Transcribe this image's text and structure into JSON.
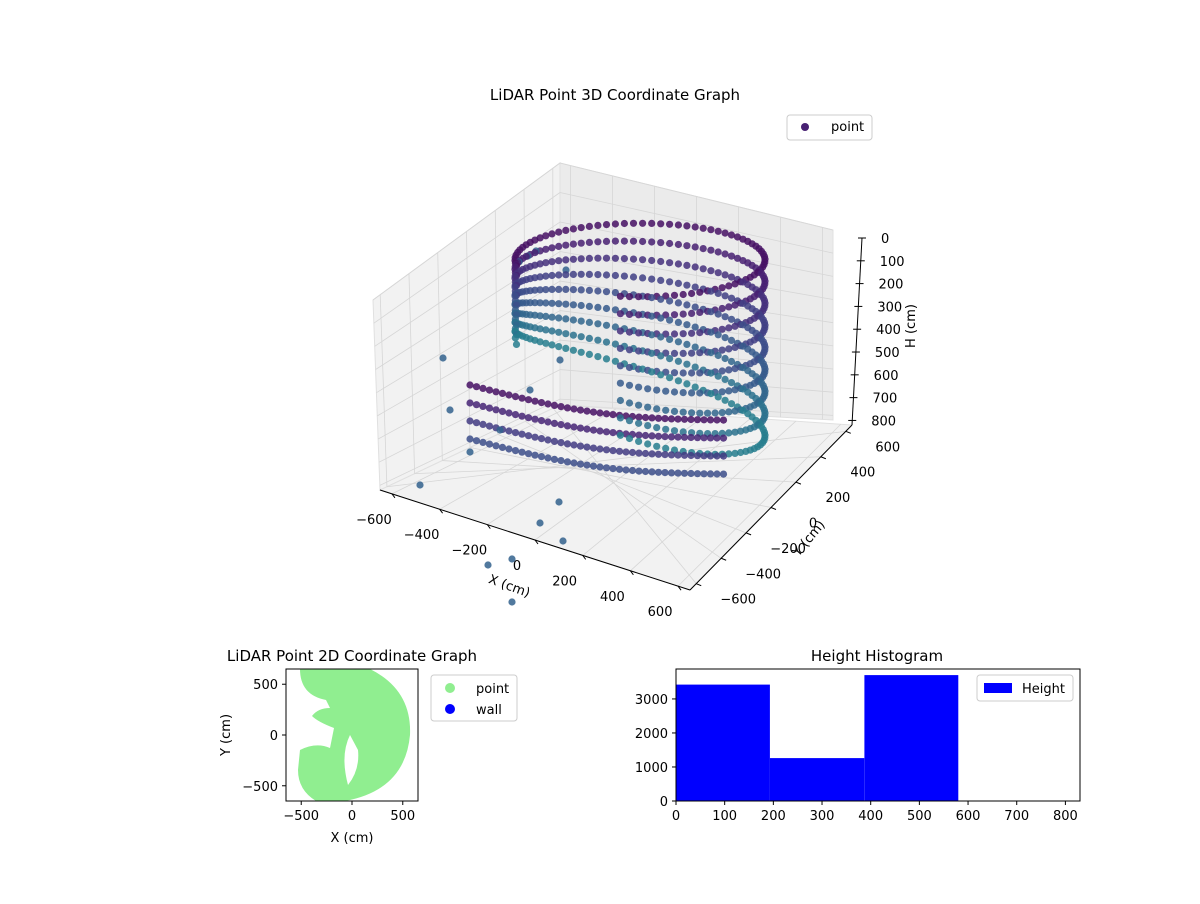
{
  "chart_data": [
    {
      "type": "scatter",
      "title": "LiDAR Point 3D Coordinate Graph",
      "xlabel": "X (cm)",
      "ylabel": "Y (cm)",
      "zlabel": "H (cm)",
      "xticks": [
        "−600",
        "−400",
        "−200",
        "0",
        "200",
        "400",
        "600"
      ],
      "yticks": [
        "−600",
        "−400",
        "−200",
        "0",
        "200",
        "400",
        "600"
      ],
      "zticks": [
        "0",
        "100",
        "200",
        "300",
        "400",
        "500",
        "600",
        "700",
        "800"
      ],
      "xlim": [
        -650,
        650
      ],
      "ylim": [
        -650,
        650
      ],
      "zlim": [
        0,
        820
      ],
      "z_inverted": true,
      "grid": true,
      "legend": {
        "placement": "top-right",
        "entries": [
          {
            "label": "point",
            "color": "#482173"
          }
        ]
      },
      "colormap": "viridis",
      "series": [
        {
          "name": "point"
        }
      ]
    },
    {
      "type": "scatter",
      "title": "LiDAR Point 2D Coordinate Graph",
      "xlabel": "X (cm)",
      "ylabel": "Y (cm)",
      "xticks": [
        "−500",
        "0",
        "500"
      ],
      "yticks": [
        "−500",
        "0",
        "500"
      ],
      "xlim": [
        -650,
        650
      ],
      "ylim": [
        -650,
        650
      ],
      "legend": {
        "placement": "outside-right",
        "entries": [
          {
            "label": "point",
            "color": "#90EE90"
          },
          {
            "label": "wall",
            "color": "#0000FF"
          }
        ]
      },
      "series": [
        {
          "name": "point",
          "color": "#90EE90"
        },
        {
          "name": "wall",
          "color": "#0000FF"
        }
      ]
    },
    {
      "type": "bar",
      "title": "Height Histogram",
      "bins": [
        [
          0,
          193
        ],
        [
          193,
          387
        ],
        [
          387,
          580
        ]
      ],
      "values": [
        3420,
        1260,
        3700
      ],
      "xlim": [
        0,
        830
      ],
      "ylim": [
        0,
        3880
      ],
      "xticks": [
        "0",
        "100",
        "200",
        "300",
        "400",
        "500",
        "600",
        "700",
        "800"
      ],
      "yticks": [
        "0",
        "1000",
        "2000",
        "3000"
      ],
      "color": "#0000FF",
      "legend": {
        "placement": "top-right",
        "entries": [
          {
            "label": "Height",
            "color": "#0000FF"
          }
        ]
      },
      "series": [
        {
          "name": "Height"
        }
      ]
    }
  ]
}
